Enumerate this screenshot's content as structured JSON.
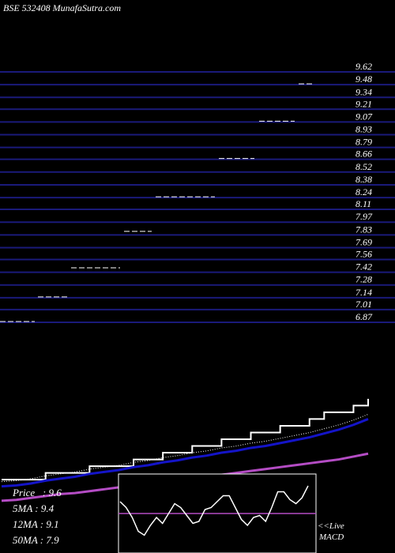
{
  "header": {
    "site_title": "BSE 532408 MunafaSutra.com"
  },
  "stats": {
    "price": "Price   : 9.6",
    "ma5": "5MA : 9.4",
    "ma12": "12MA : 9.1",
    "ma50": "50MA : 7.9"
  },
  "macd": {
    "live_label": "<<Live",
    "macd_label": "MACD"
  },
  "colors": {
    "background": "#000000",
    "grid": "#1a1a7a",
    "price_line": "#ffffff",
    "ma_short": "#1414c8",
    "ma_long": "#b44cc4",
    "macd_signal": "#b44cc4"
  },
  "chart_data": [
    {
      "type": "line",
      "title": "",
      "y_ticks": [
        "9.62",
        "9.48",
        "9.34",
        "9.21",
        "9.07",
        "8.93",
        "8.79",
        "8.66",
        "8.52",
        "8.38",
        "8.24",
        "8.11",
        "7.97",
        "7.83",
        "7.69",
        "7.56",
        "7.42",
        "7.28",
        "7.14",
        "7.01",
        "6.87"
      ],
      "ylim": [
        6.87,
        9.62
      ],
      "price_levels": [
        {
          "price": 6.87,
          "x_start": 0,
          "x_end": 44
        },
        {
          "price": 7.14,
          "x_start": 48,
          "x_end": 85
        },
        {
          "price": 7.46,
          "x_start": 90,
          "x_end": 152
        },
        {
          "price": 7.86,
          "x_start": 157,
          "x_end": 192
        },
        {
          "price": 8.24,
          "x_start": 197,
          "x_end": 272
        },
        {
          "price": 8.66,
          "x_start": 277,
          "x_end": 322
        },
        {
          "price": 9.07,
          "x_start": 328,
          "x_end": 373
        },
        {
          "price": 9.48,
          "x_start": 378,
          "x_end": 398
        }
      ],
      "series": [
        {
          "name": "Price",
          "style": "step",
          "values": [
            7.47,
            7.47,
            7.47,
            7.54,
            7.54,
            7.54,
            7.61,
            7.61,
            7.61,
            7.68,
            7.68,
            7.75,
            7.75,
            7.82,
            7.82,
            7.89,
            7.89,
            7.96,
            7.96,
            8.03,
            8.03,
            8.1,
            8.17,
            8.17,
            8.24,
            8.31
          ]
        },
        {
          "name": "5MA",
          "style": "line",
          "values": [
            7.4,
            7.41,
            7.43,
            7.46,
            7.48,
            7.5,
            7.53,
            7.55,
            7.57,
            7.6,
            7.62,
            7.65,
            7.67,
            7.7,
            7.72,
            7.75,
            7.77,
            7.8,
            7.82,
            7.85,
            7.88,
            7.91,
            7.95,
            7.99,
            8.04,
            8.1
          ]
        },
        {
          "name": "50MA",
          "style": "line",
          "values": [
            7.25,
            7.26,
            7.28,
            7.3,
            7.32,
            7.33,
            7.35,
            7.37,
            7.39,
            7.41,
            7.43,
            7.44,
            7.46,
            7.48,
            7.5,
            7.52,
            7.54,
            7.56,
            7.58,
            7.6,
            7.62,
            7.64,
            7.66,
            7.68,
            7.71,
            7.74
          ]
        }
      ]
    },
    {
      "type": "line",
      "title": "MACD",
      "signal_level": 0,
      "values": [
        0.3,
        0.15,
        -0.1,
        -0.45,
        -0.55,
        -0.3,
        -0.1,
        -0.25,
        0.0,
        0.25,
        0.15,
        -0.05,
        -0.25,
        -0.2,
        0.1,
        0.15,
        0.3,
        0.45,
        0.45,
        0.15,
        -0.15,
        -0.3,
        -0.1,
        -0.05,
        -0.2,
        0.15,
        0.55,
        0.55,
        0.35,
        0.25,
        0.4,
        0.7
      ]
    }
  ]
}
